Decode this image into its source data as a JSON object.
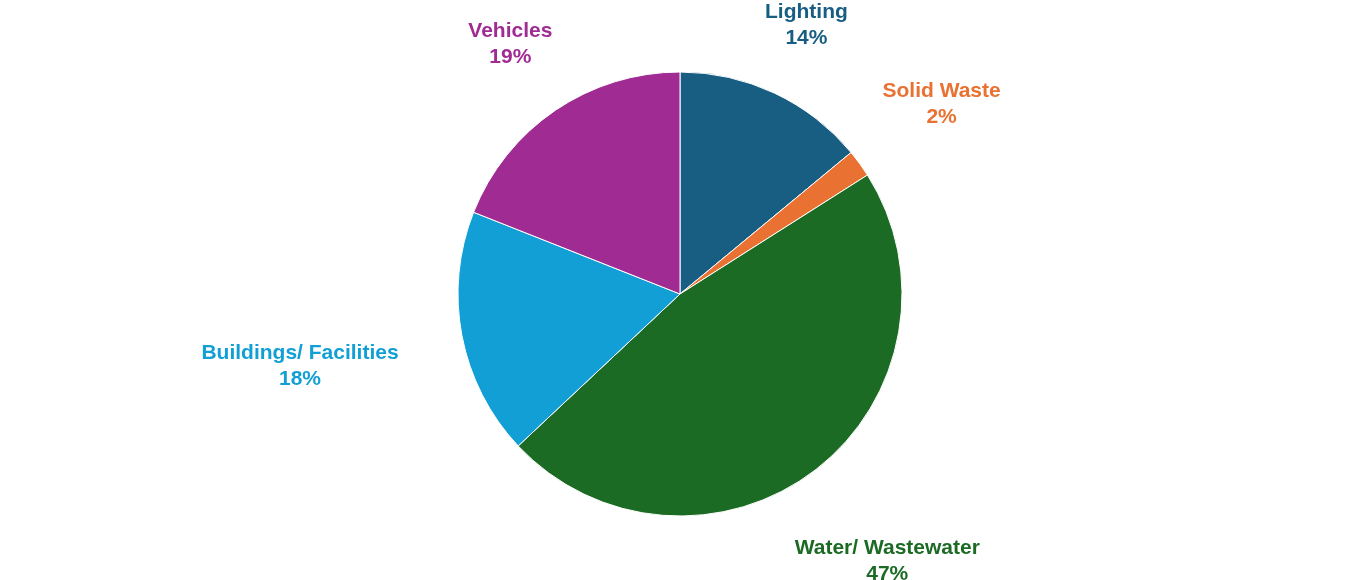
{
  "chart_data": {
    "type": "pie",
    "categories": [
      "Lighting",
      "Solid Waste",
      "Water/ Wastewater",
      "Buildings/ Facilities",
      "Vehicles"
    ],
    "values": [
      14,
      2,
      47,
      18,
      19
    ],
    "colors": [
      "#175e82",
      "#e97132",
      "#1c6b25",
      "#129fd6",
      "#a02b93"
    ],
    "value_labels": [
      "14%",
      "2%",
      "47%",
      "18%",
      "19%"
    ],
    "legend": false
  }
}
